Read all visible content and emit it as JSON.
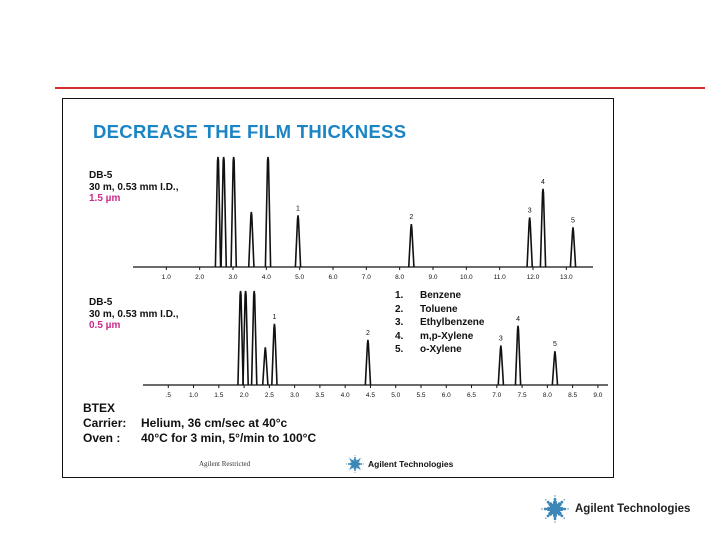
{
  "slide": {
    "title": "DECREASE THE FILM THICKNESS",
    "restricted_label": "Agilent Restricted",
    "brand": "Agilent Technologies",
    "accent_color": "#d42e2e",
    "title_color": "#1b84c4",
    "film_color": "#cc2a8b"
  },
  "columns": [
    {
      "name": "DB-5",
      "dims": "30 m, 0.53 mm I.D.,",
      "film": "1.5 µm"
    },
    {
      "name": "DB-5",
      "dims": "30 m, 0.53 mm I.D.,",
      "film": "0.5 µm"
    }
  ],
  "legend": [
    {
      "num": "1.",
      "compound": "Benzene"
    },
    {
      "num": "2.",
      "compound": "Toluene"
    },
    {
      "num": "3.",
      "compound": "Ethylbenzene"
    },
    {
      "num": "4.",
      "compound": "m,p-Xylene"
    },
    {
      "num": "5.",
      "compound": "o-Xylene"
    }
  ],
  "conditions": {
    "sample": "BTEX",
    "carrier_label": "Carrier:",
    "carrier_value": "Helium, 36 cm/sec at 40°c",
    "oven_label": "Oven :",
    "oven_value": "40°C for 3 min, 5°/min to 100°C"
  },
  "chart_data": [
    {
      "type": "line",
      "x_unit": "min",
      "xlim": [
        0,
        13.8
      ],
      "tick_labels": [
        "1.0",
        "2.0",
        "3.0",
        "4.0",
        "5.0",
        "6.0",
        "7.0",
        "8.0",
        "9.0",
        "10.0",
        "11.0",
        "12.0",
        "13.0"
      ],
      "peaks": [
        {
          "x": 2.55,
          "h": 1.0,
          "label": ""
        },
        {
          "x": 2.72,
          "h": 1.0,
          "label": ""
        },
        {
          "x": 3.02,
          "h": 1.0,
          "label": ""
        },
        {
          "x": 3.55,
          "h": 0.5,
          "label": ""
        },
        {
          "x": 4.05,
          "h": 1.0,
          "label": ""
        },
        {
          "x": 4.95,
          "h": 0.47,
          "label": "1"
        },
        {
          "x": 8.35,
          "h": 0.39,
          "label": "2"
        },
        {
          "x": 11.9,
          "h": 0.45,
          "label": "3"
        },
        {
          "x": 12.3,
          "h": 0.71,
          "label": "4"
        },
        {
          "x": 13.2,
          "h": 0.36,
          "label": "5"
        }
      ]
    },
    {
      "type": "line",
      "x_unit": "min",
      "xlim": [
        0,
        9.2
      ],
      "tick_labels": [
        ".5",
        "1.0",
        "1.5",
        "2.0",
        "2.5",
        "3.0",
        "3.5",
        "4.0",
        "4.5",
        "5.0",
        "5.5",
        "6.0",
        "6.5",
        "7.0",
        "7.5",
        "8.0",
        "8.5",
        "9.0"
      ],
      "peaks": [
        {
          "x": 1.93,
          "h": 1.0,
          "label": ""
        },
        {
          "x": 2.03,
          "h": 1.0,
          "label": ""
        },
        {
          "x": 2.2,
          "h": 1.0,
          "label": ""
        },
        {
          "x": 2.42,
          "h": 0.4,
          "label": ""
        },
        {
          "x": 2.6,
          "h": 0.65,
          "label": "1"
        },
        {
          "x": 4.45,
          "h": 0.48,
          "label": "2"
        },
        {
          "x": 7.08,
          "h": 0.42,
          "label": "3"
        },
        {
          "x": 7.42,
          "h": 0.63,
          "label": "4"
        },
        {
          "x": 8.15,
          "h": 0.36,
          "label": "5"
        }
      ]
    }
  ]
}
